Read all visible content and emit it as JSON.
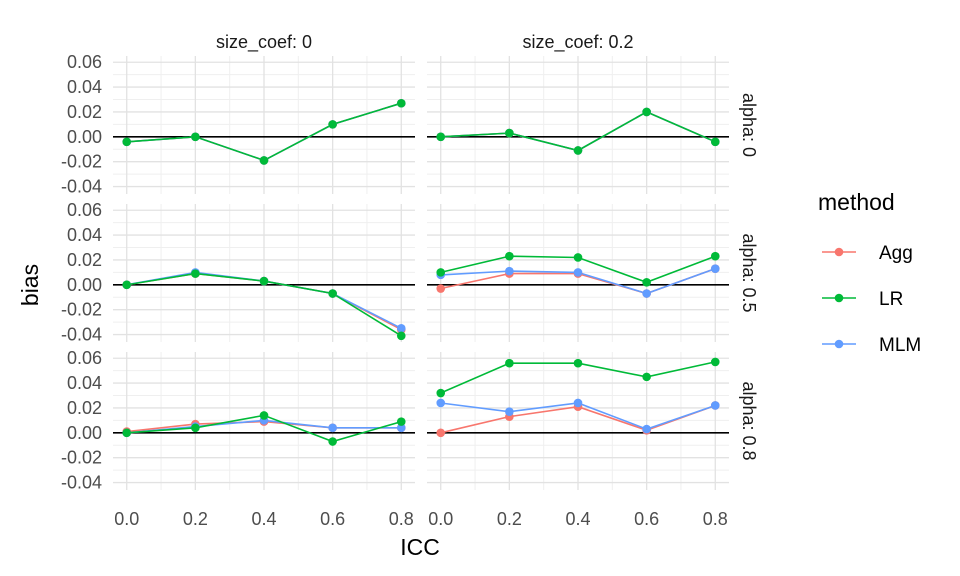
{
  "chart_data": {
    "type": "line",
    "xlabel": "ICC",
    "ylabel": "bias",
    "x": [
      0.0,
      0.2,
      0.4,
      0.6,
      0.8
    ],
    "x_tick_labels": [
      "0.0",
      "0.2",
      "0.4",
      "0.6",
      "0.8"
    ],
    "y_ticks": [
      0.06,
      0.04,
      0.02,
      0.0,
      -0.02,
      -0.04
    ],
    "y_tick_labels": [
      "0.06",
      "0.04",
      "0.02",
      "0.00",
      "-0.02",
      "-0.04"
    ],
    "ylim": [
      -0.046,
      0.065
    ],
    "xlim": [
      -0.04,
      0.84
    ],
    "reference_line": 0,
    "grid": true,
    "legend": {
      "title": "method",
      "placement": "right"
    },
    "facet_cols": [
      "size_coef: 0",
      "size_coef: 0.2"
    ],
    "facet_rows": [
      "alpha: 0",
      "alpha: 0.5",
      "alpha: 0.8"
    ],
    "series_order": [
      "Agg",
      "LR",
      "MLM"
    ],
    "colors": {
      "Agg": "#F8766D",
      "LR": "#00BA38",
      "MLM": "#619CFF"
    },
    "panels": [
      [
        {
          "Agg": [
            -0.004,
            0.0,
            -0.019,
            0.01,
            0.027
          ],
          "LR": [
            -0.004,
            0.0,
            -0.019,
            0.01,
            0.027
          ],
          "MLM": [
            -0.004,
            0.0,
            -0.019,
            0.01,
            0.027
          ]
        },
        {
          "Agg": [
            0.0,
            0.003,
            -0.011,
            0.02,
            -0.004
          ],
          "LR": [
            0.0,
            0.003,
            -0.011,
            0.02,
            -0.004
          ],
          "MLM": [
            0.0,
            0.003,
            -0.011,
            0.02,
            -0.004
          ]
        }
      ],
      [
        {
          "Agg": [
            0.0,
            0.009,
            0.003,
            -0.007,
            -0.036
          ],
          "LR": [
            0.0,
            0.009,
            0.003,
            -0.007,
            -0.041
          ],
          "MLM": [
            0.0,
            0.01,
            0.003,
            -0.007,
            -0.035
          ]
        },
        {
          "Agg": [
            -0.003,
            0.009,
            0.009,
            -0.007,
            0.013
          ],
          "LR": [
            0.01,
            0.023,
            0.022,
            0.002,
            0.023
          ],
          "MLM": [
            0.008,
            0.011,
            0.01,
            -0.007,
            0.013
          ]
        }
      ],
      [
        {
          "Agg": [
            0.001,
            0.007,
            0.009,
            0.004,
            0.004
          ],
          "LR": [
            0.0,
            0.004,
            0.014,
            -0.007,
            0.009
          ],
          "MLM": [
            0.0,
            0.005,
            0.01,
            0.004,
            0.004
          ]
        },
        {
          "Agg": [
            0.0,
            0.013,
            0.021,
            0.002,
            0.022
          ],
          "LR": [
            0.032,
            0.056,
            0.056,
            0.045,
            0.057
          ],
          "MLM": [
            0.024,
            0.017,
            0.024,
            0.003,
            0.022
          ]
        }
      ]
    ]
  }
}
